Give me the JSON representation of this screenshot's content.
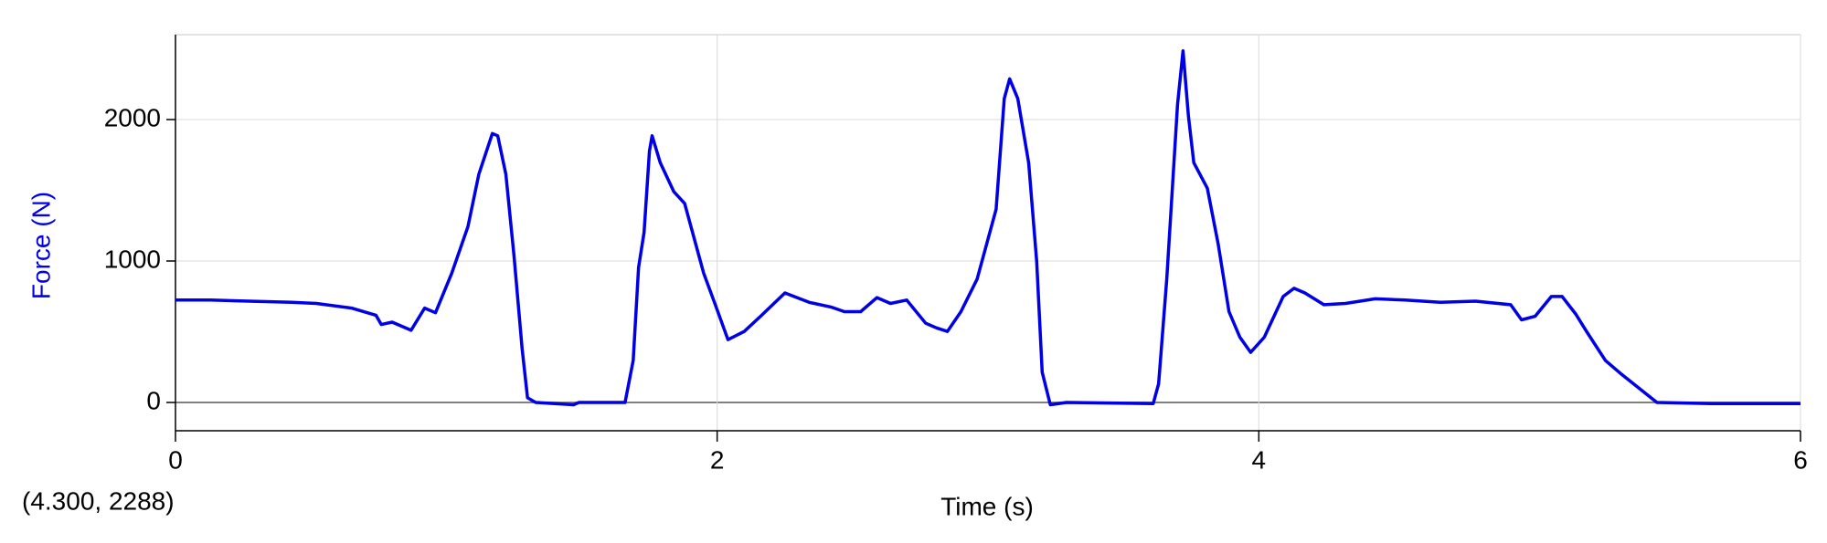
{
  "chart_data": {
    "type": "line",
    "xlabel": "Time (s)",
    "ylabel": "Force (N)",
    "readout": "(4.300, 2288)",
    "color": "#0000e6",
    "label_color": "#0000e6",
    "xlim": [
      0,
      6
    ],
    "ylim": [
      -200,
      2600
    ],
    "xticks": [
      0,
      2,
      4,
      6
    ],
    "yticks": [
      0,
      1000,
      2000
    ],
    "grid": true,
    "x": [
      0,
      0.13,
      0.43,
      0.52,
      0.65,
      0.74,
      0.76,
      0.8,
      0.87,
      0.92,
      0.96,
      1.02,
      1.08,
      1.12,
      1.17,
      1.19,
      1.22,
      1.25,
      1.28,
      1.3,
      1.33,
      1.47,
      1.49,
      1.66,
      1.69,
      1.71,
      1.73,
      1.75,
      1.76,
      1.79,
      1.84,
      1.88,
      1.95,
      1.99,
      2.04,
      2.1,
      2.16,
      2.25,
      2.34,
      2.42,
      2.47,
      2.53,
      2.59,
      2.64,
      2.7,
      2.77,
      2.81,
      2.85,
      2.9,
      2.96,
      3.03,
      3.06,
      3.08,
      3.11,
      3.15,
      3.18,
      3.2,
      3.23,
      3.29,
      3.61,
      3.63,
      3.66,
      3.7,
      3.72,
      3.74,
      3.76,
      3.81,
      3.85,
      3.89,
      3.93,
      3.97,
      4.02,
      4.09,
      4.13,
      4.17,
      4.24,
      4.32,
      4.43,
      4.54,
      4.67,
      4.8,
      4.93,
      4.97,
      5.02,
      5.08,
      5.12,
      5.17,
      5.21,
      5.28,
      5.34,
      5.41,
      5.47,
      5.67,
      6.0
    ],
    "values": [
      724,
      724,
      708,
      700,
      667,
      617,
      551,
      568,
      510,
      667,
      634,
      914,
      1243,
      1613,
      1901,
      1885,
      1613,
      1037,
      379,
      33,
      0,
      -16,
      0,
      0,
      296,
      955,
      1202,
      1778,
      1885,
      1695,
      1490,
      1407,
      914,
      708,
      444,
      502,
      609,
      774,
      708,
      675,
      642,
      642,
      741,
      700,
      724,
      560,
      527,
      502,
      642,
      872,
      1366,
      2148,
      2288,
      2148,
      1695,
      996,
      214,
      -16,
      0,
      -8,
      132,
      872,
      2107,
      2486,
      2025,
      1695,
      1514,
      1119,
      642,
      461,
      354,
      461,
      749,
      807,
      774,
      691,
      700,
      733,
      724,
      708,
      716,
      691,
      584,
      609,
      749,
      749,
      626,
      502,
      296,
      198,
      91,
      0,
      -8,
      -8
    ]
  }
}
